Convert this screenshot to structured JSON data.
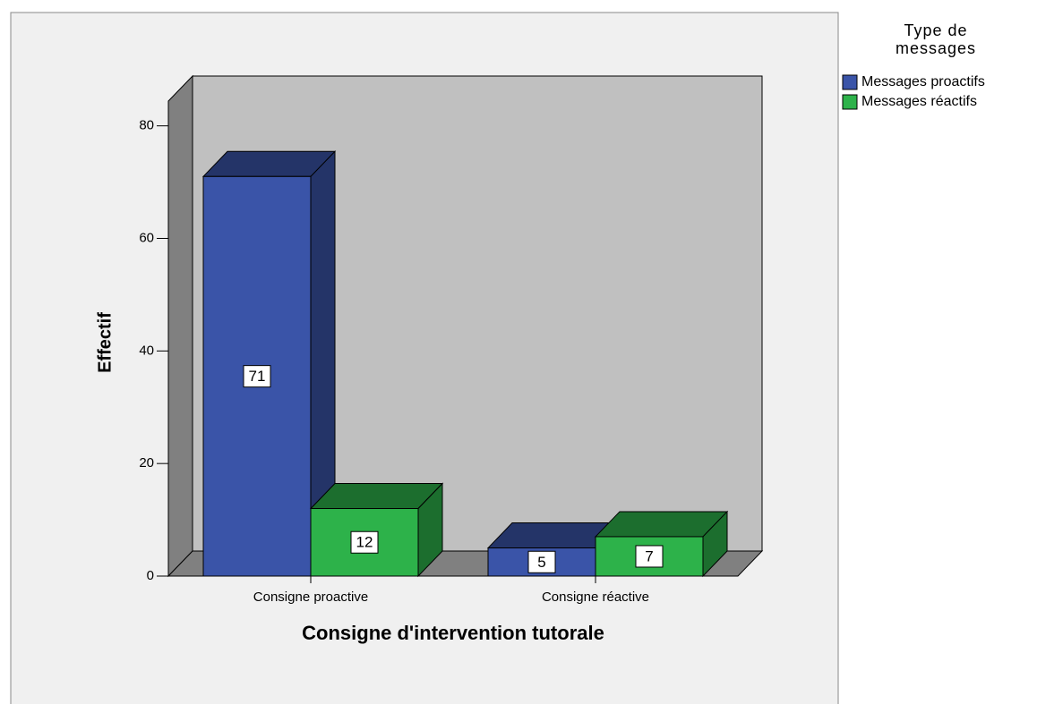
{
  "chart_data": {
    "type": "bar3d",
    "x_label": "Consigne d'intervention tutorale",
    "y_label": "Effectif",
    "legend_title": "Type de messages",
    "categories": [
      "Consigne proactive",
      "Consigne réactive"
    ],
    "series": [
      {
        "name": "Messages proactifs",
        "color": "#3a54a8",
        "values": [
          71,
          5
        ]
      },
      {
        "name": "Messages réactifs",
        "color": "#2db24a",
        "values": [
          12,
          7
        ]
      }
    ],
    "ylim": [
      0,
      84.4
    ],
    "yticks": [
      0,
      20,
      40,
      60,
      80
    ]
  }
}
